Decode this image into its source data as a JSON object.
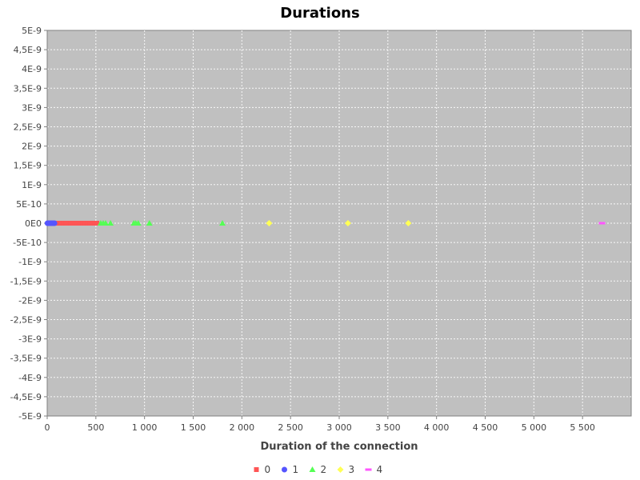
{
  "chart_data": {
    "type": "scatter",
    "title": "Durations",
    "xlabel": "Duration of the connection",
    "ylabel": "",
    "xlim": [
      0,
      6000
    ],
    "ylim": [
      -5e-09,
      5e-09
    ],
    "x_ticks": [
      0,
      500,
      1000,
      1500,
      2000,
      2500,
      3000,
      3500,
      4000,
      4500,
      5000,
      5500
    ],
    "x_tick_labels": [
      "0",
      "500",
      "1 000",
      "1 500",
      "2 000",
      "2 500",
      "3 000",
      "3 500",
      "4 000",
      "4 500",
      "5 000",
      "5 500"
    ],
    "y_ticks": [
      5e-09,
      4.5e-09,
      4e-09,
      3.5e-09,
      3e-09,
      2.5e-09,
      2e-09,
      1.5e-09,
      1e-09,
      5e-10,
      0,
      -5e-10,
      -1e-09,
      -1.5e-09,
      -2e-09,
      -2.5e-09,
      -3e-09,
      -3.5e-09,
      -4e-09,
      -4.5e-09,
      -5e-09
    ],
    "y_tick_labels": [
      "5E-9",
      "4,5E-9",
      "4E-9",
      "3,5E-9",
      "3E-9",
      "2,5E-9",
      "2E-9",
      "1,5E-9",
      "1E-9",
      "5E-10",
      "0E0",
      "-5E-10",
      "-1E-9",
      "-1,5E-9",
      "-2E-9",
      "-2,5E-9",
      "-3E-9",
      "-3,5E-9",
      "-4E-9",
      "-4,5E-9",
      "-5E-9"
    ],
    "grid": true,
    "legend_position": "bottom",
    "plot_background": "#c0c0c0",
    "series": [
      {
        "name": "0",
        "color": "#ff5555",
        "marker": "square",
        "points": [
          [
            90,
            0
          ],
          [
            115,
            0
          ],
          [
            140,
            0
          ],
          [
            165,
            0
          ],
          [
            190,
            0
          ],
          [
            215,
            0
          ],
          [
            240,
            0
          ],
          [
            265,
            0
          ],
          [
            290,
            0
          ],
          [
            315,
            0
          ],
          [
            340,
            0
          ],
          [
            365,
            0
          ],
          [
            390,
            0
          ],
          [
            415,
            0
          ],
          [
            440,
            0
          ],
          [
            465,
            0
          ],
          [
            490,
            0
          ],
          [
            510,
            0
          ]
        ]
      },
      {
        "name": "1",
        "color": "#5555ff",
        "marker": "circle",
        "points": [
          [
            3,
            0
          ],
          [
            15,
            0
          ],
          [
            30,
            0
          ],
          [
            45,
            0
          ],
          [
            60,
            0
          ],
          [
            75,
            0
          ]
        ]
      },
      {
        "name": "2",
        "color": "#55ff55",
        "marker": "triangle",
        "points": [
          [
            550,
            0
          ],
          [
            575,
            0
          ],
          [
            600,
            0
          ],
          [
            650,
            0
          ],
          [
            890,
            0
          ],
          [
            910,
            0
          ],
          [
            935,
            0
          ],
          [
            1050,
            0
          ],
          [
            1800,
            0
          ]
        ]
      },
      {
        "name": "3",
        "color": "#ffff55",
        "marker": "diamond",
        "points": [
          [
            2280,
            0
          ],
          [
            3090,
            0
          ],
          [
            3710,
            0
          ]
        ]
      },
      {
        "name": "4",
        "color": "#ff55ff",
        "marker": "hbar",
        "points": [
          [
            5700,
            0
          ]
        ]
      }
    ]
  }
}
